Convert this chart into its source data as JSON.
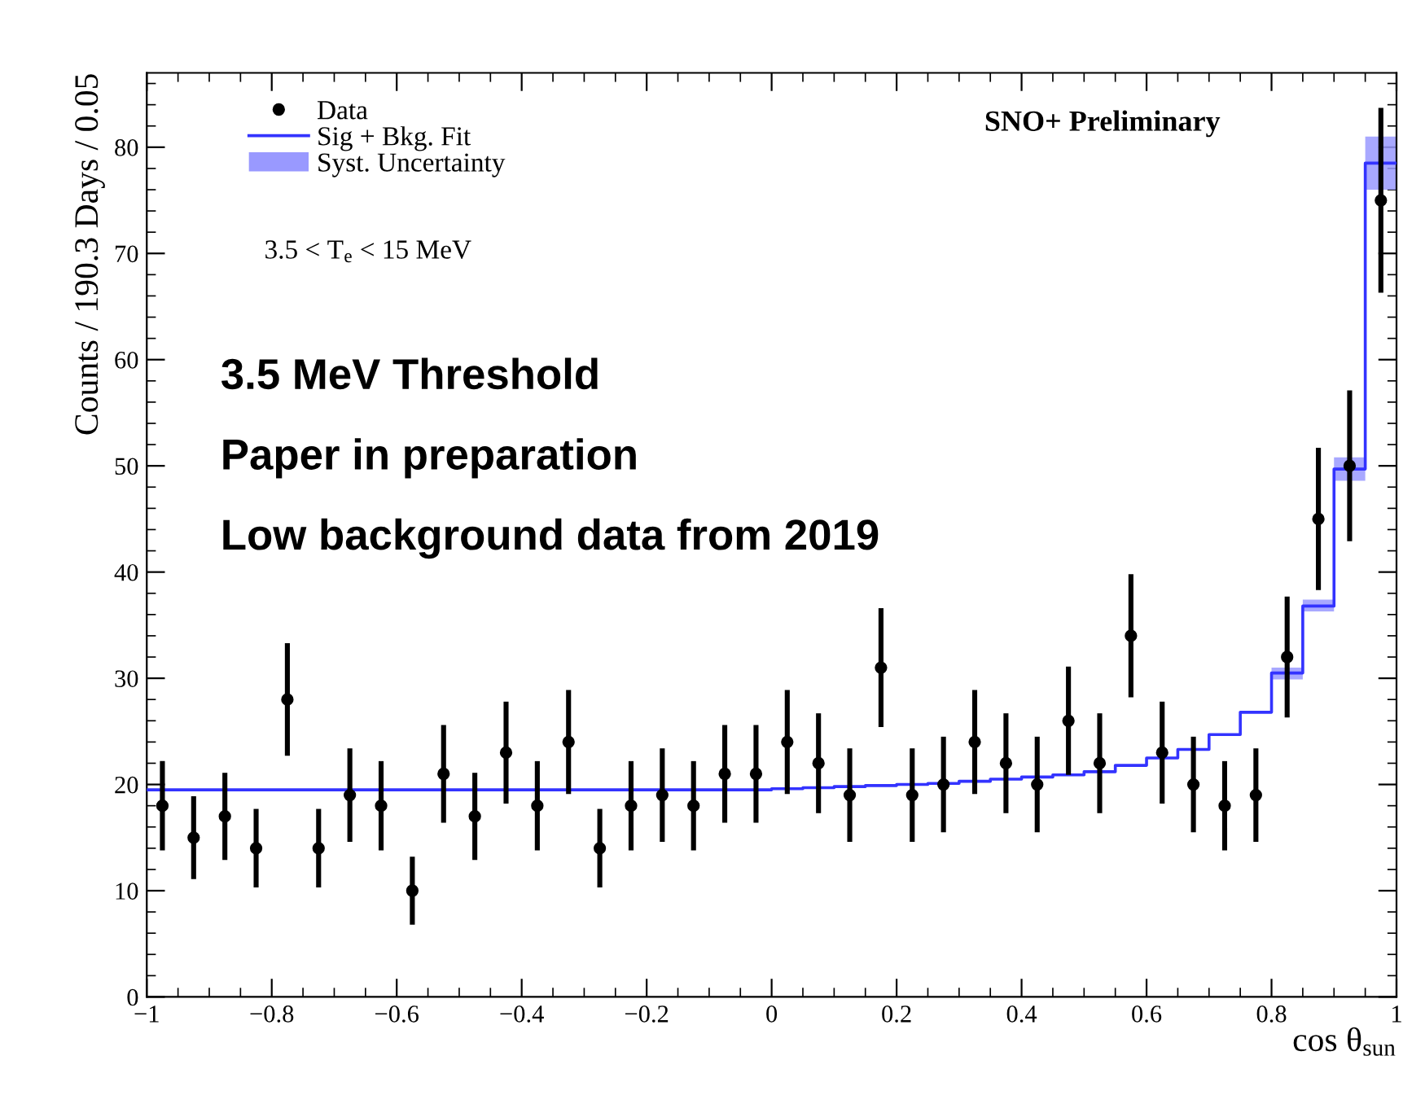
{
  "chart_data": {
    "type": "scatter",
    "xlabel": "cos θ$_{sun}$",
    "ylabel": "Counts / 190.3 Days / 0.05",
    "xlim": [
      -1,
      1
    ],
    "ylim": [
      0,
      87
    ],
    "xticks": [
      {
        "value": -1,
        "label": "−1"
      },
      {
        "value": -0.8,
        "label": "−0.8"
      },
      {
        "value": -0.6,
        "label": "−0.6"
      },
      {
        "value": -0.4,
        "label": "−0.4"
      },
      {
        "value": -0.2,
        "label": "−0.2"
      },
      0,
      0.2,
      0.4,
      0.6,
      0.8,
      1
    ],
    "yticks": [
      0,
      10,
      20,
      30,
      40,
      50,
      60,
      70,
      80
    ],
    "grid": false,
    "legend": "top left",
    "annotations": [
      "3.5 MeV Threshold",
      "Paper in preparation",
      "Low background data from 2019",
      "SNO+ Preliminary",
      "3.5 < T$_{e}$ < 15 MeV"
    ],
    "series": [
      {
        "name": "Data",
        "color": "#000000",
        "marker": "circle",
        "x": [
          -0.975,
          -0.925,
          -0.875,
          -0.825,
          -0.775,
          -0.725,
          -0.675,
          -0.625,
          -0.575,
          -0.525,
          -0.475,
          -0.425,
          -0.375,
          -0.325,
          -0.275,
          -0.225,
          -0.175,
          -0.125,
          -0.075,
          -0.025,
          0.025,
          0.075,
          0.125,
          0.175,
          0.225,
          0.275,
          0.325,
          0.375,
          0.425,
          0.475,
          0.525,
          0.575,
          0.625,
          0.675,
          0.725,
          0.775,
          0.825,
          0.875,
          0.925,
          0.975
        ],
        "values": [
          18,
          15,
          17,
          14,
          28,
          14,
          19,
          18,
          10,
          21,
          17,
          23,
          18,
          24,
          14,
          18,
          19,
          18,
          21,
          21,
          24,
          22,
          19,
          31,
          19,
          20,
          24,
          22,
          20,
          26,
          22,
          34,
          23,
          20,
          18,
          19,
          32,
          45,
          50,
          75
        ],
        "errors": [
          4.2,
          3.9,
          4.1,
          3.7,
          5.3,
          3.7,
          4.4,
          4.2,
          3.2,
          4.6,
          4.1,
          4.8,
          4.2,
          4.9,
          3.7,
          4.2,
          4.4,
          4.2,
          4.6,
          4.6,
          4.9,
          4.7,
          4.4,
          5.6,
          4.4,
          4.5,
          4.9,
          4.7,
          4.5,
          5.1,
          4.7,
          5.8,
          4.8,
          4.5,
          4.2,
          4.4,
          5.7,
          6.7,
          7.1,
          8.7
        ]
      },
      {
        "name": "Sig + Bkg. Fit",
        "type": "step",
        "color": "#3333ff",
        "x": [
          -1,
          -0.95,
          -0.9,
          -0.85,
          -0.8,
          -0.75,
          -0.7,
          -0.65,
          -0.6,
          -0.55,
          -0.5,
          -0.45,
          -0.4,
          -0.35,
          -0.3,
          -0.25,
          -0.2,
          -0.15,
          -0.1,
          -0.05,
          0,
          0.05,
          0.1,
          0.15,
          0.2,
          0.25,
          0.3,
          0.35,
          0.4,
          0.45,
          0.5,
          0.55,
          0.6,
          0.65,
          0.7,
          0.75,
          0.8,
          0.85,
          0.9,
          0.95,
          1
        ],
        "values": [
          19.5,
          19.5,
          19.5,
          19.5,
          19.5,
          19.5,
          19.5,
          19.5,
          19.5,
          19.5,
          19.5,
          19.5,
          19.5,
          19.5,
          19.5,
          19.5,
          19.5,
          19.5,
          19.5,
          19.5,
          19.6,
          19.7,
          19.8,
          19.9,
          20.0,
          20.1,
          20.3,
          20.5,
          20.7,
          20.9,
          21.2,
          21.8,
          22.5,
          23.3,
          24.7,
          26.8,
          30.5,
          36.8,
          49.7,
          78.5,
          78.5
        ]
      },
      {
        "name": "Syst. Uncertainty",
        "type": "bar",
        "color": "#9999ff",
        "x": [
          0.825,
          0.875,
          0.925,
          0.975
        ],
        "base": [
          29.9,
          36.3,
          48.6,
          76.0
        ],
        "values": [
          1.1,
          1.1,
          2.2,
          5.0
        ]
      }
    ]
  }
}
